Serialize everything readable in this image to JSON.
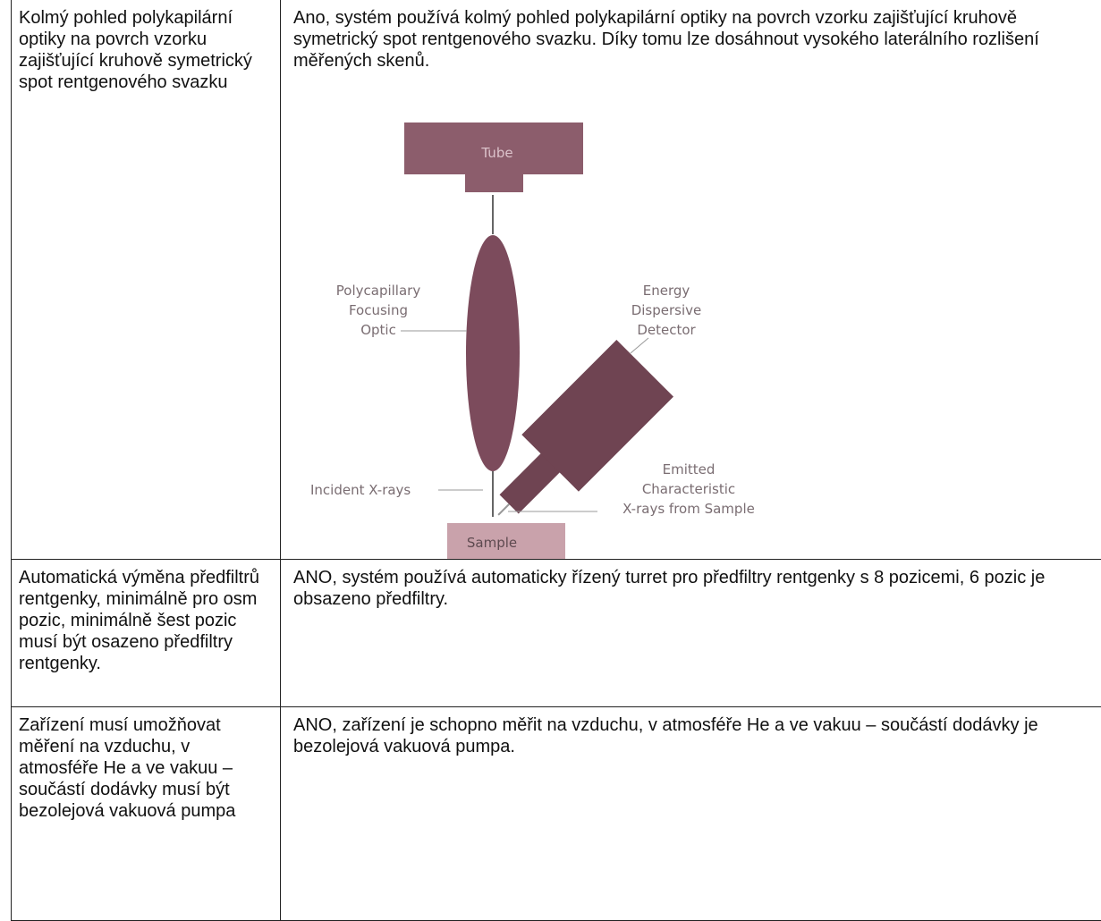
{
  "table": {
    "rows": [
      [
        "Kolmý pohled polykapilární optiky na povrch vzorku zajišťující kruhově symetrický spot rentgenového svazku",
        "Ano, systém používá kolmý pohled polykapilární optiky na povrch vzorku zajišťující kruhově symetrický spot rentgenového svazku. Díky tomu lze dosáhnout vysokého laterálního rozlišení měřených skenů."
      ],
      [
        "Automatická výměna předfiltrů rentgenky, minimálně pro osm pozic, minimálně šest pozic musí být osazeno předfiltry rentgenky.",
        "ANO, systém používá automaticky řízený turret pro předfiltry rentgenky s 8 pozicemi, 6 pozic je obsazeno předfiltry."
      ],
      [
        "Zařízení musí umožňovat měření na vzduchu, v atmosféře He a ve vakuu – součástí dodávky musí být bezolejová vakuová pumpa",
        "ANO, zařízení je schopno měřit na vzduchu, v atmosféře He a ve vakuu – součástí dodávky je bezolejová vakuová pumpa."
      ]
    ]
  },
  "diagram": {
    "tube": "Tube",
    "optic": [
      "Polycapillary",
      "Focusing",
      "Optic"
    ],
    "detector": [
      "Energy",
      "Dispersive",
      "Detector"
    ],
    "incident": "Incident X-rays",
    "emitted": [
      "Emitted",
      "Characteristic",
      "X-rays from Sample"
    ],
    "sample": "Sample"
  }
}
